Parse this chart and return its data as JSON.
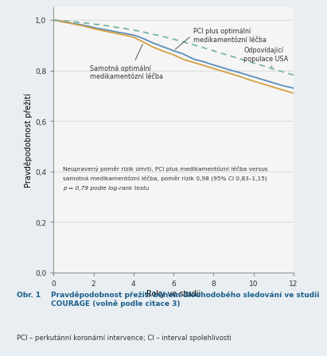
{
  "title_label": "Obr. 1",
  "title_text": "   Pravděpodobnost přežití během dlouhodobého sledování ve studii\nCOURAGE (volně podle citace 3)",
  "footnote": "PCI – perkutánní koronární intervence; CI – interval spolehlivosti",
  "xlabel": "Roky ve studii",
  "ylabel": "Pravděpodobnost přežití",
  "xlim": [
    0,
    12
  ],
  "ylim": [
    0.0,
    1.05
  ],
  "yticks": [
    0.0,
    0.2,
    0.4,
    0.6,
    0.8,
    1.0
  ],
  "ytick_labels": [
    "0,0",
    "0,2",
    "0,4",
    "0,6",
    "0,8",
    "1,0"
  ],
  "xticks": [
    0,
    2,
    4,
    6,
    8,
    10,
    12
  ],
  "annotation_line1": "Neupravený poměr rizik úmrtí, PCI plus medikamentózní léčba versus",
  "annotation_line2": "samotná medikamentózní léčba, poměr rizik 0,98 (95% CI 0,83–1,15)",
  "annotation_line3": "p = 0,79 podle log-rank testu",
  "pci_label": "PCI plus optimální\nmedikamentózní léčba",
  "med_label": "Samotná optimální\nmedikamentózní léčba",
  "usa_label": "Odpovídající\npopulace USA",
  "pci_color": "#5b8db8",
  "med_color": "#d4a040",
  "usa_color": "#7ab5a0",
  "fig_bg": "#e8eef2",
  "plot_bg": "#f5f5f5",
  "caption_bg": "#d5e4ee",
  "title_color": "#1a5f8a",
  "pci_x": [
    0,
    0.25,
    0.5,
    0.75,
    1,
    1.25,
    1.5,
    1.75,
    2,
    2.25,
    2.5,
    2.75,
    3,
    3.25,
    3.5,
    3.75,
    4,
    4.25,
    4.5,
    4.75,
    5,
    5.25,
    5.5,
    5.75,
    6,
    6.25,
    6.5,
    6.75,
    7,
    7.25,
    7.5,
    7.75,
    8,
    8.25,
    8.5,
    8.75,
    9,
    9.25,
    9.5,
    9.75,
    10,
    10.25,
    10.5,
    10.75,
    11,
    11.25,
    11.5,
    11.75,
    12
  ],
  "pci_y": [
    1.0,
    0.997,
    0.993,
    0.99,
    0.986,
    0.983,
    0.979,
    0.975,
    0.97,
    0.966,
    0.963,
    0.959,
    0.955,
    0.951,
    0.948,
    0.944,
    0.94,
    0.934,
    0.926,
    0.917,
    0.908,
    0.901,
    0.893,
    0.886,
    0.878,
    0.872,
    0.865,
    0.855,
    0.845,
    0.84,
    0.835,
    0.828,
    0.822,
    0.816,
    0.81,
    0.804,
    0.798,
    0.793,
    0.787,
    0.781,
    0.775,
    0.769,
    0.763,
    0.757,
    0.751,
    0.745,
    0.739,
    0.735,
    0.73
  ],
  "med_x": [
    0,
    0.25,
    0.5,
    0.75,
    1,
    1.25,
    1.5,
    1.75,
    2,
    2.25,
    2.5,
    2.75,
    3,
    3.25,
    3.5,
    3.75,
    4,
    4.25,
    4.5,
    4.75,
    5,
    5.25,
    5.5,
    5.75,
    6,
    6.25,
    6.5,
    6.75,
    7,
    7.25,
    7.5,
    7.75,
    8,
    8.25,
    8.5,
    8.75,
    9,
    9.25,
    9.5,
    9.75,
    10,
    10.25,
    10.5,
    10.75,
    11,
    11.25,
    11.5,
    11.75,
    12
  ],
  "med_y": [
    1.0,
    0.996,
    0.992,
    0.988,
    0.984,
    0.98,
    0.976,
    0.971,
    0.966,
    0.961,
    0.957,
    0.953,
    0.949,
    0.945,
    0.941,
    0.937,
    0.932,
    0.922,
    0.912,
    0.902,
    0.892,
    0.884,
    0.876,
    0.869,
    0.862,
    0.853,
    0.844,
    0.838,
    0.832,
    0.826,
    0.82,
    0.814,
    0.808,
    0.802,
    0.796,
    0.79,
    0.784,
    0.778,
    0.771,
    0.764,
    0.758,
    0.752,
    0.746,
    0.74,
    0.734,
    0.728,
    0.722,
    0.716,
    0.71
  ],
  "usa_x": [
    0,
    0.5,
    1,
    1.5,
    2,
    2.5,
    3,
    3.5,
    4,
    4.5,
    5,
    5.5,
    6,
    6.5,
    7,
    7.5,
    8,
    8.5,
    9,
    9.5,
    10,
    10.5,
    11,
    11.5,
    12
  ],
  "usa_y": [
    1.0,
    0.997,
    0.993,
    0.989,
    0.984,
    0.979,
    0.973,
    0.967,
    0.96,
    0.952,
    0.943,
    0.934,
    0.924,
    0.913,
    0.902,
    0.89,
    0.878,
    0.866,
    0.854,
    0.842,
    0.83,
    0.818,
    0.806,
    0.794,
    0.782
  ]
}
